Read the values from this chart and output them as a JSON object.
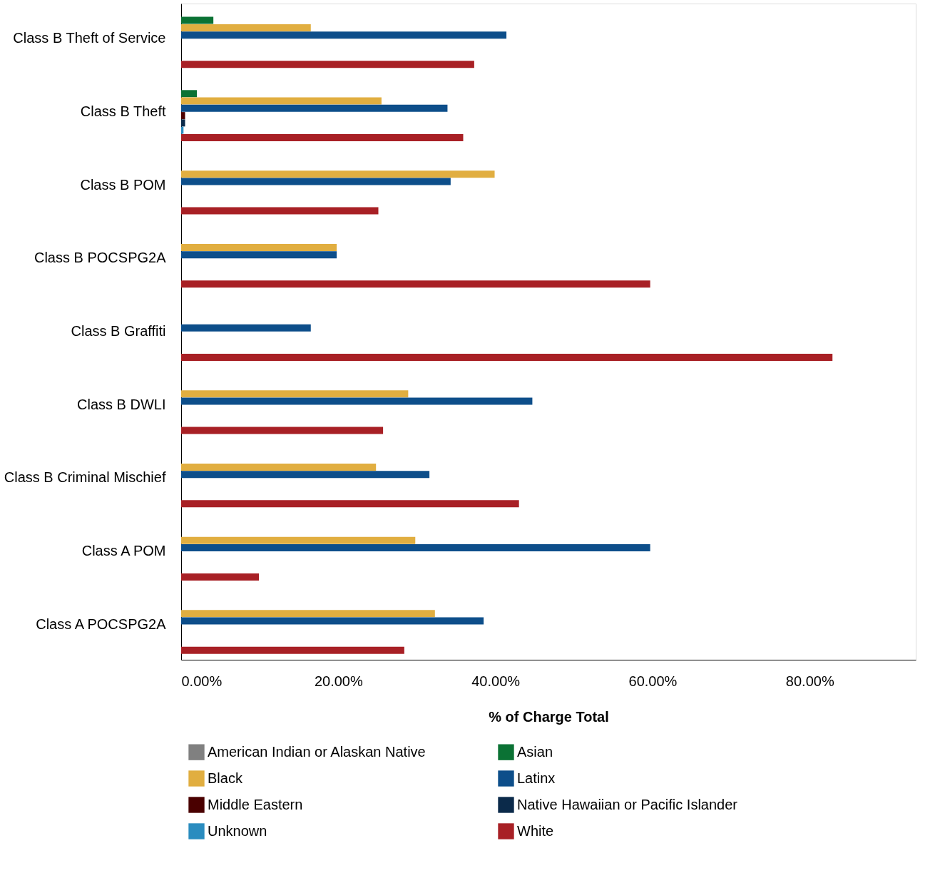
{
  "chart_data": {
    "type": "bar",
    "orientation": "horizontal",
    "xlabel": "% of Charge Total",
    "categories": [
      "Class B Theft of Service",
      "Class B Theft",
      "Class B POM",
      "Class B POCSPG2A",
      "Class B Graffiti",
      "Class B DWLI",
      "Class B Criminal Mischief",
      "Class A POM",
      "Class A POCSPG2A"
    ],
    "series": [
      {
        "name": "American Indian or Alaskan Native",
        "color": "#808080",
        "values": [
          null,
          null,
          null,
          null,
          null,
          null,
          null,
          null,
          null
        ]
      },
      {
        "name": "Asian",
        "color": "#0b7234",
        "values": [
          4.1,
          2.0,
          null,
          null,
          null,
          null,
          null,
          null,
          null
        ]
      },
      {
        "name": "Black",
        "color": "#e1ae40",
        "values": [
          16.5,
          25.5,
          39.9,
          19.8,
          null,
          28.9,
          24.8,
          29.8,
          32.3
        ]
      },
      {
        "name": "Latinx",
        "color": "#0d4e8a",
        "values": [
          41.4,
          33.9,
          34.3,
          19.8,
          16.5,
          44.7,
          31.6,
          59.7,
          38.5
        ]
      },
      {
        "name": "Middle Eastern",
        "color": "#4a0000",
        "values": [
          null,
          0.5,
          null,
          null,
          null,
          null,
          null,
          null,
          null
        ]
      },
      {
        "name": "Native Hawaiian or Pacific Islander",
        "color": "#0b2a4a",
        "values": [
          null,
          0.5,
          null,
          null,
          null,
          null,
          null,
          null,
          null
        ]
      },
      {
        "name": "Unknown",
        "color": "#2a8cbf",
        "values": [
          null,
          0.3,
          null,
          null,
          null,
          null,
          null,
          null,
          null
        ]
      },
      {
        "name": "White",
        "color": "#a82025",
        "values": [
          37.3,
          35.9,
          25.1,
          59.7,
          82.9,
          25.7,
          43.0,
          9.9,
          28.4
        ]
      }
    ],
    "xlim": [
      0,
      93.5
    ],
    "xticks": [
      {
        "value": 0,
        "label": "0.00%"
      },
      {
        "value": 20,
        "label": "20.00%"
      },
      {
        "value": 40,
        "label": "40.00%"
      },
      {
        "value": 60,
        "label": "60.00%"
      },
      {
        "value": 80,
        "label": "80.00%"
      }
    ],
    "grid": false,
    "legend": "bottom"
  }
}
